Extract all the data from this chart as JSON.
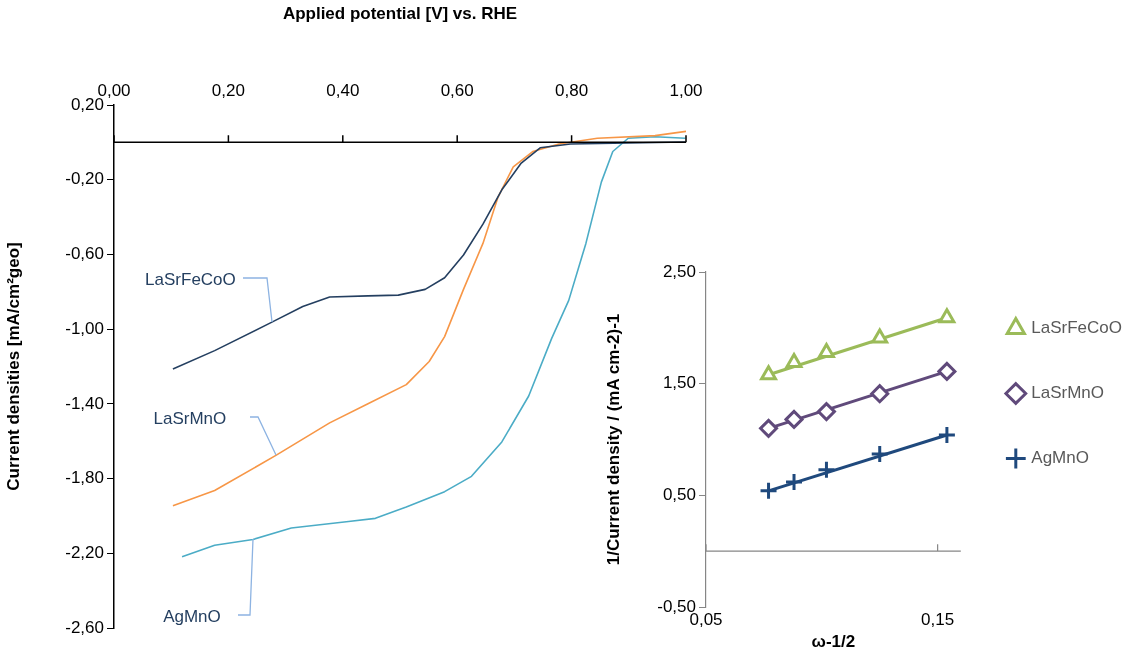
{
  "chart_data": [
    {
      "type": "line",
      "xlabel": "Applied potential [V] vs. RHE",
      "ylabel": "Current densities [mA/cm²geo]",
      "xlim": [
        0,
        1
      ],
      "xticks": [
        {
          "value": 0,
          "label": "0,00"
        },
        {
          "value": 0.2,
          "label": "0,20"
        },
        {
          "value": 0.4,
          "label": "0,40"
        },
        {
          "value": 0.6,
          "label": "0,60"
        },
        {
          "value": 0.8,
          "label": "0,80"
        },
        {
          "value": 1,
          "label": "1,00"
        }
      ],
      "ylim": [
        -2.6,
        0.2
      ],
      "yticks": [
        {
          "value": 0.2,
          "label": "0,20"
        },
        {
          "value": -0.2,
          "label": "-0,20"
        },
        {
          "value": -0.6,
          "label": "-0,60"
        },
        {
          "value": -1,
          "label": "-1,00"
        },
        {
          "value": -1.4,
          "label": "-1,40"
        },
        {
          "value": -1.8,
          "label": "-1,80"
        },
        {
          "value": -2.2,
          "label": "-2,20"
        },
        {
          "value": -2.6,
          "label": "-2,60"
        }
      ],
      "grid": false,
      "legend": false,
      "marker": "none",
      "line_style": "solid",
      "series": [
        {
          "name": "LaSrFeCoO",
          "color": "#243f60",
          "x": [
            0.103,
            0.176,
            0.277,
            0.33,
            0.377,
            0.444,
            0.497,
            0.544,
            0.578,
            0.611,
            0.645,
            0.678,
            0.712,
            0.745,
            0.798,
            0.999
          ],
          "values": [
            -1.213,
            -1.115,
            -0.961,
            -0.879,
            -0.828,
            -0.822,
            -0.818,
            -0.787,
            -0.725,
            -0.603,
            -0.438,
            -0.254,
            -0.111,
            -0.029,
            -0.009,
            0.002
          ]
        },
        {
          "name": "LaSrMnO",
          "color": "#f79646",
          "x": [
            0.103,
            0.176,
            0.283,
            0.377,
            0.444,
            0.511,
            0.551,
            0.578,
            0.611,
            0.645,
            0.671,
            0.698,
            0.732,
            0.778,
            0.845,
            0.946,
            1.0
          ],
          "values": [
            -1.946,
            -1.864,
            -1.676,
            -1.502,
            -1.399,
            -1.297,
            -1.173,
            -1.04,
            -0.787,
            -0.541,
            -0.296,
            -0.131,
            -0.049,
            -0.009,
            0.022,
            0.036,
            0.059
          ]
        },
        {
          "name": "AgMnO",
          "color": "#4bacc6",
          "x": [
            0.119,
            0.176,
            0.243,
            0.31,
            0.41,
            0.457,
            0.511,
            0.578,
            0.625,
            0.678,
            0.725,
            0.765,
            0.795,
            0.825,
            0.852,
            0.872,
            0.899,
            0.946,
            0.999
          ],
          "values": [
            -2.218,
            -2.157,
            -2.126,
            -2.065,
            -2.03,
            -2.013,
            -1.952,
            -1.87,
            -1.788,
            -1.604,
            -1.358,
            -1.051,
            -0.846,
            -0.541,
            -0.213,
            -0.049,
            0.022,
            0.03,
            0.022
          ]
        }
      ]
    },
    {
      "type": "scatter",
      "xlabel": "ω-1/2",
      "ylabel": "1/Current density / (mA cm-2)-1",
      "xlim": [
        0.05,
        0.16
      ],
      "xticks": [
        {
          "value": 0.05,
          "label": "0,05"
        },
        {
          "value": 0.15,
          "label": "0,15"
        }
      ],
      "ylim": [
        -0.5,
        2.5
      ],
      "yticks": [
        {
          "value": -0.5,
          "label": "-0,50"
        },
        {
          "value": 0.5,
          "label": "0,50"
        },
        {
          "value": 1.5,
          "label": "1,50"
        },
        {
          "value": 2.5,
          "label": "2,50"
        }
      ],
      "grid": false,
      "legend": "right",
      "series": [
        {
          "name": "LaSrFeCoO",
          "color": "#9bbb59",
          "marker": "triangle",
          "x": [
            0.077,
            0.088,
            0.102,
            0.125,
            0.154
          ],
          "values": [
            1.58,
            1.69,
            1.78,
            1.91,
            2.09
          ]
        },
        {
          "name": "LaSrMnO",
          "color": "#604a7b",
          "marker": "diamond",
          "x": [
            0.077,
            0.088,
            0.102,
            0.125,
            0.154
          ],
          "values": [
            1.1,
            1.18,
            1.25,
            1.41,
            1.61
          ]
        },
        {
          "name": "AgMnO",
          "color": "#1f497d",
          "marker": "cross",
          "x": [
            0.077,
            0.088,
            0.102,
            0.125,
            0.154
          ],
          "values": [
            0.54,
            0.62,
            0.73,
            0.87,
            1.04
          ]
        },
        {
          "type": "line",
          "color": "#9bbb59",
          "marker": "none",
          "x": [
            0.077,
            0.154
          ],
          "values": [
            1.58,
            2.09
          ]
        },
        {
          "type": "line",
          "color": "#604a7b",
          "marker": "none",
          "x": [
            0.077,
            0.154
          ],
          "values": [
            1.1,
            1.61
          ]
        },
        {
          "type": "line",
          "color": "#1f497d",
          "marker": "none",
          "x": [
            0.077,
            0.154
          ],
          "values": [
            0.54,
            1.04
          ]
        }
      ]
    }
  ]
}
